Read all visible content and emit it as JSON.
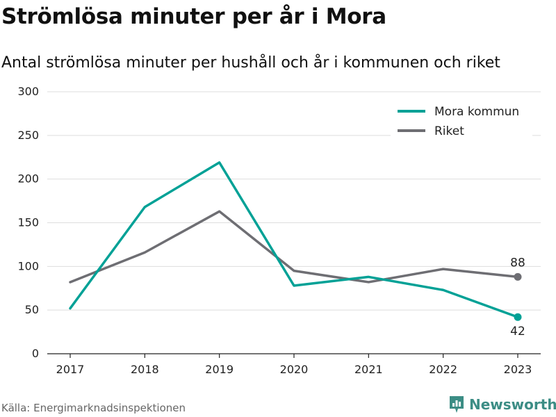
{
  "title": "Strömlösa minuter per år i Mora",
  "subtitle": "Antal strömlösa minuter per hushåll och år i kommunen och riket",
  "source": "Källa: Energimarknadsinspektionen",
  "brand": {
    "name": "Newsworthy",
    "icon": "newsworthy-logo-icon",
    "color": "#3c8d85"
  },
  "chart_data": {
    "type": "line",
    "title": "",
    "xlabel": "",
    "ylabel": "",
    "categories": [
      "2017",
      "2018",
      "2019",
      "2020",
      "2021",
      "2022",
      "2023"
    ],
    "ylim": [
      0,
      300
    ],
    "yticks": [
      0,
      50,
      100,
      150,
      200,
      250,
      300
    ],
    "grid": true,
    "legend_position": "top-right",
    "series": [
      {
        "name": "Mora kommun",
        "color": "#00a196",
        "values": [
          52,
          168,
          219,
          78,
          88,
          73,
          42
        ],
        "end_label": "42"
      },
      {
        "name": "Riket",
        "color": "#6e6e73",
        "values": [
          82,
          116,
          163,
          95,
          82,
          97,
          88
        ],
        "end_label": "88"
      }
    ]
  }
}
